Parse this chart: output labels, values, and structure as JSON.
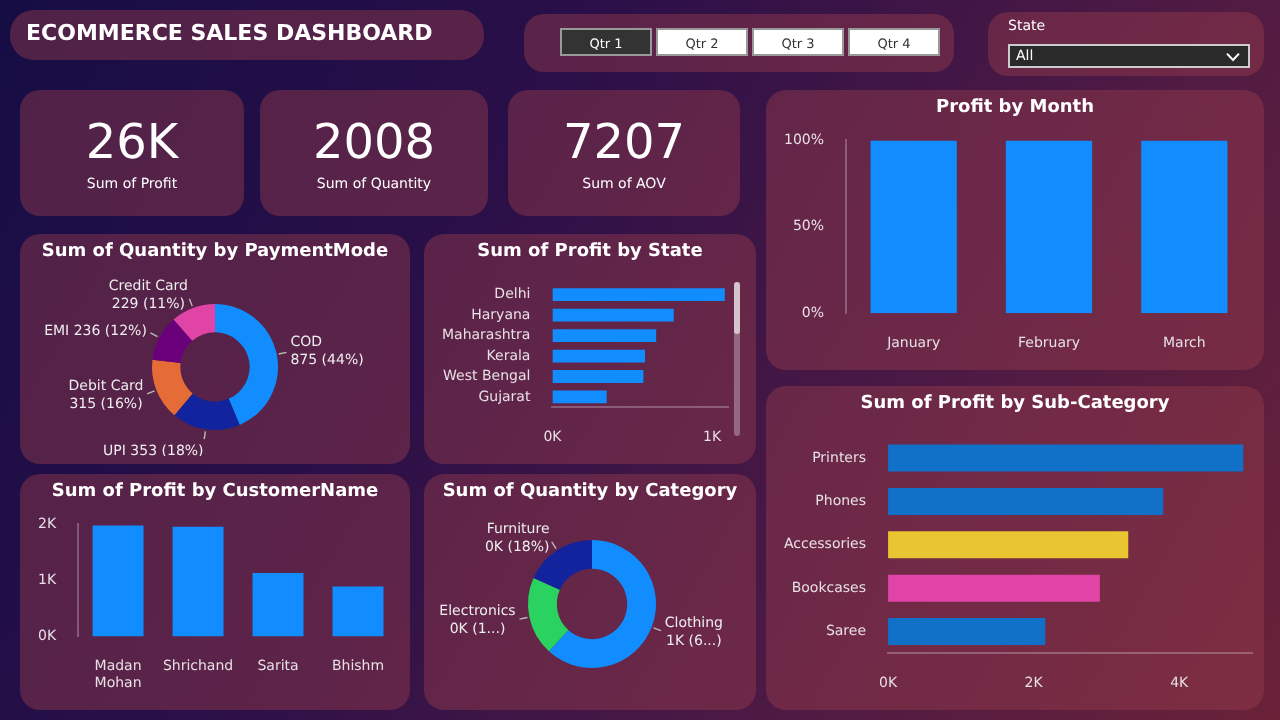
{
  "chart_data": [
    {
      "type": "other",
      "title": "ECOMMERCE SALES DASHBOARD",
      "annotations": [
        "Qtr 1",
        "Qtr 2",
        "Qtr 3",
        "Qtr 4"
      ]
    },
    {
      "type": "other",
      "title": "State",
      "annotations": [
        "All"
      ]
    },
    {
      "type": "other",
      "annotations": [
        "26K",
        "Sum of Profit"
      ]
    },
    {
      "type": "other",
      "annotations": [
        "2008",
        "Sum of Quantity"
      ]
    },
    {
      "type": "other",
      "annotations": [
        "7207",
        "Sum of AOV"
      ]
    },
    {
      "type": "bar",
      "title": "Profit by Month",
      "categories": [
        "January",
        "February",
        "March"
      ],
      "values": [
        100,
        100,
        100
      ],
      "color": "#118dff",
      "ylim": [
        0,
        100
      ],
      "yticks": [
        {
          "value": 0,
          "label": "0%"
        },
        {
          "value": 50,
          "label": "50%"
        },
        {
          "value": 100,
          "label": "100%"
        }
      ]
    },
    {
      "type": "donut",
      "title": "Sum of Quantity by PaymentMode",
      "categories": [
        "COD",
        "UPI",
        "Debit Card",
        "EMI",
        "Credit Card"
      ],
      "values": [
        875,
        353,
        315,
        236,
        229
      ],
      "colors": [
        "#118dff",
        "#12239e",
        "#e66c37",
        "#6b007b",
        "#e044a7"
      ],
      "value_labels": [
        "875 (44%)",
        "353 (18%)",
        "315 (16%)",
        "236 (12%)",
        "229 (11%)"
      ]
    },
    {
      "type": "bar",
      "orientation": "horizontal",
      "title": "Sum of Profit by State",
      "categories": [
        "Delhi",
        "Haryana",
        "Maharashtra",
        "Kerala",
        "West Bengal",
        "Gujarat"
      ],
      "values": [
        1080,
        760,
        650,
        580,
        570,
        340
      ],
      "color": "#118dff",
      "xlim": [
        0,
        1100
      ],
      "xticks": [
        {
          "value": 0,
          "label": "0K"
        },
        {
          "value": 1000,
          "label": "1K"
        }
      ]
    },
    {
      "type": "bar",
      "title": "Sum of Profit by CustomerName",
      "categories": [
        "Madan Mohan",
        "Shrichand",
        "Sarita",
        "Bhishm"
      ],
      "values": [
        1980,
        1960,
        1130,
        890
      ],
      "color": "#118dff",
      "ylim": [
        0,
        2000
      ],
      "yticks": [
        {
          "value": 0,
          "label": "0K"
        },
        {
          "value": 1000,
          "label": "1K"
        },
        {
          "value": 2000,
          "label": "2K"
        }
      ]
    },
    {
      "type": "donut",
      "title": "Sum of Quantity by Category",
      "categories": [
        "Clothing",
        "Electronics",
        "Furniture"
      ],
      "values": [
        1240,
        400,
        368
      ],
      "colors": [
        "#118dff",
        "#2ad360",
        "#12239e"
      ],
      "value_labels": [
        "1K (6...)",
        "0K (1...)",
        "0K (18%)"
      ]
    },
    {
      "type": "bar",
      "orientation": "horizontal",
      "title": "Sum of Profit by Sub-Category",
      "categories": [
        "Printers",
        "Phones",
        "Accessories",
        "Bookcases",
        "Saree"
      ],
      "values": [
        4880,
        3780,
        3300,
        2910,
        2160
      ],
      "colors": [
        "#1170c8",
        "#1170c8",
        "#e8c531",
        "#e044a7",
        "#1170c8"
      ],
      "xlim": [
        0,
        5000
      ],
      "xticks": [
        {
          "value": 0,
          "label": "0K"
        },
        {
          "value": 2000,
          "label": "2K"
        },
        {
          "value": 4000,
          "label": "4K"
        }
      ]
    }
  ]
}
